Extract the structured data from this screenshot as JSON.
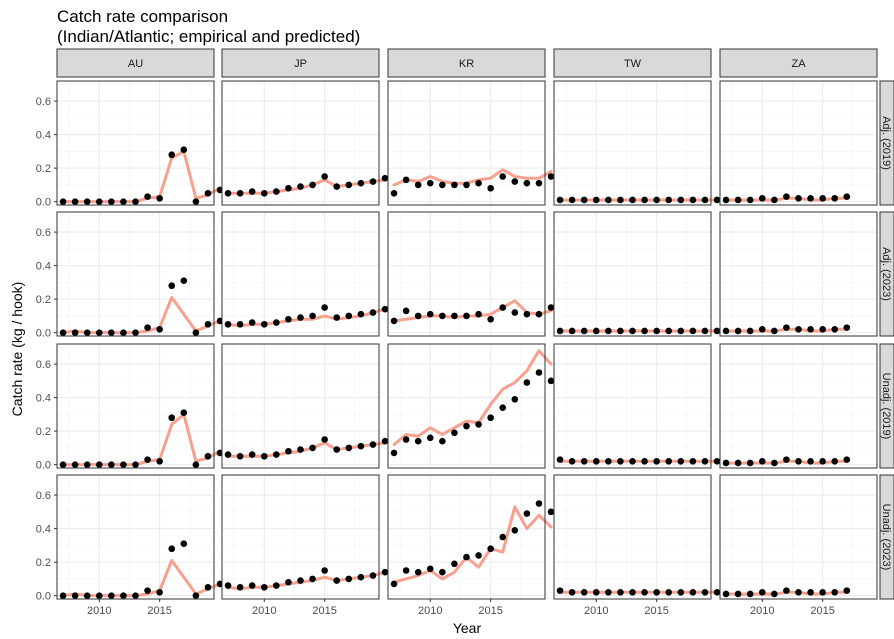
{
  "chart_data": {
    "type": "scatter",
    "title": "Catch rate comparison",
    "subtitle": "(Indian/Atlantic; empirical and predicted)",
    "xlabel": "Year",
    "ylabel": "Catch rate (kg / hook)",
    "xlim": [
      2006.5,
      2019.5
    ],
    "ylim": [
      -0.02,
      0.72
    ],
    "x_ticks": [
      2010,
      2015
    ],
    "y_ticks": [
      0.0,
      0.2,
      0.4,
      0.6
    ],
    "y_tick_labels": [
      "0.0",
      "0.2",
      "0.4",
      "0.6"
    ],
    "columns": [
      "AU",
      "JP",
      "KR",
      "TW",
      "ZA"
    ],
    "rows": [
      "Adj. (2019)",
      "Adj. (2023)",
      "Unadj. (2019)",
      "Unadj. (2023)"
    ],
    "grid": true,
    "colors": {
      "predicted_line": "#F8A08E",
      "empirical_point": "#000000",
      "strip_bg": "#D9D9D9"
    },
    "empirical": {
      "AU": {
        "x": [
          2007,
          2008,
          2009,
          2010,
          2011,
          2012,
          2013,
          2014,
          2015,
          2016,
          2017,
          2018,
          2019,
          2020
        ],
        "Adj. (2019)": [
          0.0,
          0.0,
          0.0,
          0.0,
          0.0,
          0.0,
          0.0,
          0.03,
          0.02,
          0.28,
          0.31,
          0.0,
          0.05,
          0.07
        ],
        "Adj. (2023)": [
          0.0,
          0.0,
          0.0,
          0.0,
          0.0,
          0.0,
          0.0,
          0.03,
          0.02,
          0.28,
          0.31,
          0.0,
          0.05,
          0.07
        ],
        "Unadj. (2019)": [
          0.0,
          0.0,
          0.0,
          0.0,
          0.0,
          0.0,
          0.0,
          0.03,
          0.02,
          0.28,
          0.31,
          0.0,
          0.05,
          0.07
        ],
        "Unadj. (2023)": [
          0.0,
          0.0,
          0.0,
          0.0,
          0.0,
          0.0,
          0.0,
          0.03,
          0.02,
          0.28,
          0.31,
          0.0,
          0.05,
          0.07
        ]
      },
      "JP": {
        "x": [
          2007,
          2008,
          2009,
          2010,
          2011,
          2012,
          2013,
          2014,
          2015,
          2016,
          2017,
          2018,
          2019,
          2020
        ],
        "Adj. (2019)": [
          0.05,
          0.05,
          0.06,
          0.05,
          0.06,
          0.08,
          0.09,
          0.1,
          0.15,
          0.09,
          0.1,
          0.11,
          0.12,
          0.14
        ],
        "Adj. (2023)": [
          0.05,
          0.05,
          0.06,
          0.05,
          0.06,
          0.08,
          0.09,
          0.1,
          0.15,
          0.09,
          0.1,
          0.11,
          0.12,
          0.14
        ],
        "Unadj. (2019)": [
          0.06,
          0.05,
          0.06,
          0.05,
          0.06,
          0.08,
          0.09,
          0.1,
          0.15,
          0.09,
          0.1,
          0.11,
          0.12,
          0.14
        ],
        "Unadj. (2023)": [
          0.06,
          0.05,
          0.06,
          0.05,
          0.06,
          0.08,
          0.09,
          0.1,
          0.15,
          0.09,
          0.1,
          0.11,
          0.12,
          0.14
        ]
      },
      "KR": {
        "x": [
          2007,
          2008,
          2009,
          2010,
          2011,
          2012,
          2013,
          2014,
          2015,
          2016,
          2017,
          2018,
          2019,
          2020
        ],
        "Adj. (2019)": [
          0.05,
          0.13,
          0.1,
          0.11,
          0.1,
          0.1,
          0.1,
          0.11,
          0.08,
          0.15,
          0.12,
          0.11,
          0.11,
          0.15
        ],
        "Adj. (2023)": [
          0.07,
          0.13,
          0.1,
          0.11,
          0.1,
          0.1,
          0.1,
          0.11,
          0.08,
          0.15,
          0.12,
          0.11,
          0.11,
          0.15
        ],
        "Unadj. (2019)": [
          0.07,
          0.15,
          0.14,
          0.16,
          0.14,
          0.19,
          0.23,
          0.24,
          0.28,
          0.34,
          0.39,
          0.49,
          0.55,
          0.5
        ],
        "Unadj. (2023)": [
          0.07,
          0.15,
          0.14,
          0.16,
          0.14,
          0.19,
          0.23,
          0.24,
          0.28,
          0.35,
          0.39,
          0.49,
          0.55,
          0.5
        ]
      },
      "TW": {
        "x": [
          2007,
          2008,
          2009,
          2010,
          2011,
          2012,
          2013,
          2014,
          2015,
          2016,
          2017,
          2018,
          2019,
          2020
        ],
        "Adj. (2019)": [
          0.01,
          0.01,
          0.01,
          0.01,
          0.01,
          0.01,
          0.01,
          0.01,
          0.01,
          0.01,
          0.01,
          0.01,
          0.01,
          0.01
        ],
        "Adj. (2023)": [
          0.01,
          0.01,
          0.01,
          0.01,
          0.01,
          0.01,
          0.01,
          0.01,
          0.01,
          0.01,
          0.01,
          0.01,
          0.01,
          0.01
        ],
        "Unadj. (2019)": [
          0.03,
          0.02,
          0.02,
          0.02,
          0.02,
          0.02,
          0.02,
          0.02,
          0.02,
          0.02,
          0.02,
          0.02,
          0.02,
          0.02
        ],
        "Unadj. (2023)": [
          0.03,
          0.02,
          0.02,
          0.02,
          0.02,
          0.02,
          0.02,
          0.02,
          0.02,
          0.02,
          0.02,
          0.02,
          0.02,
          0.02
        ]
      },
      "ZA": {
        "x": [
          2007,
          2008,
          2009,
          2010,
          2011,
          2012,
          2013,
          2014,
          2015,
          2016,
          2017
        ],
        "Adj. (2019)": [
          0.01,
          0.01,
          0.01,
          0.02,
          0.01,
          0.03,
          0.02,
          0.02,
          0.02,
          0.02,
          0.03
        ],
        "Adj. (2023)": [
          0.01,
          0.01,
          0.01,
          0.02,
          0.01,
          0.03,
          0.02,
          0.02,
          0.02,
          0.02,
          0.03
        ],
        "Unadj. (2019)": [
          0.01,
          0.01,
          0.01,
          0.02,
          0.01,
          0.03,
          0.02,
          0.02,
          0.02,
          0.02,
          0.03
        ],
        "Unadj. (2023)": [
          0.01,
          0.01,
          0.01,
          0.02,
          0.01,
          0.03,
          0.02,
          0.02,
          0.02,
          0.02,
          0.03
        ]
      }
    },
    "predicted": {
      "AU": {
        "x": [
          2007,
          2008,
          2009,
          2010,
          2011,
          2012,
          2013,
          2014,
          2015,
          2016,
          2017,
          2018,
          2019,
          2020
        ],
        "Adj. (2019)": [
          0.0,
          0.0,
          0.0,
          0.0,
          0.0,
          0.0,
          0.0,
          0.02,
          0.03,
          0.26,
          0.3,
          0.02,
          0.04,
          0.08
        ],
        "Adj. (2023)": [
          0.0,
          0.01,
          0.0,
          0.0,
          0.0,
          0.0,
          0.0,
          0.01,
          0.03,
          0.21,
          0.11,
          0.01,
          0.04,
          0.07
        ],
        "Unadj. (2019)": [
          0.0,
          0.0,
          0.0,
          0.0,
          0.0,
          0.0,
          0.0,
          0.02,
          0.03,
          0.24,
          0.3,
          0.02,
          0.04,
          0.08
        ],
        "Unadj. (2023)": [
          0.0,
          0.01,
          0.0,
          0.0,
          0.0,
          0.0,
          0.0,
          0.01,
          0.03,
          0.21,
          0.11,
          0.01,
          0.04,
          0.07
        ]
      },
      "JP": {
        "x": [
          2007,
          2008,
          2009,
          2010,
          2011,
          2012,
          2013,
          2014,
          2015,
          2016,
          2017,
          2018,
          2019,
          2020
        ],
        "Adj. (2019)": [
          0.05,
          0.05,
          0.05,
          0.05,
          0.06,
          0.07,
          0.08,
          0.1,
          0.13,
          0.09,
          0.1,
          0.11,
          0.12,
          0.13
        ],
        "Adj. (2023)": [
          0.05,
          0.04,
          0.05,
          0.05,
          0.06,
          0.07,
          0.08,
          0.08,
          0.1,
          0.08,
          0.09,
          0.1,
          0.12,
          0.14
        ],
        "Unadj. (2019)": [
          0.05,
          0.05,
          0.05,
          0.05,
          0.06,
          0.07,
          0.08,
          0.1,
          0.13,
          0.09,
          0.1,
          0.11,
          0.12,
          0.13
        ],
        "Unadj. (2023)": [
          0.05,
          0.04,
          0.05,
          0.05,
          0.06,
          0.07,
          0.08,
          0.09,
          0.11,
          0.09,
          0.1,
          0.11,
          0.12,
          0.14
        ]
      },
      "KR": {
        "x": [
          2007,
          2008,
          2009,
          2010,
          2011,
          2012,
          2013,
          2014,
          2015,
          2016,
          2017,
          2018,
          2019,
          2020
        ],
        "Adj. (2019)": [
          0.1,
          0.13,
          0.12,
          0.15,
          0.12,
          0.11,
          0.11,
          0.13,
          0.14,
          0.19,
          0.15,
          0.14,
          0.14,
          0.18
        ],
        "Adj. (2023)": [
          0.07,
          0.08,
          0.09,
          0.1,
          0.1,
          0.09,
          0.1,
          0.1,
          0.11,
          0.15,
          0.19,
          0.12,
          0.11,
          0.13
        ],
        "Unadj. (2019)": [
          0.12,
          0.18,
          0.17,
          0.22,
          0.18,
          0.22,
          0.26,
          0.25,
          0.36,
          0.45,
          0.49,
          0.56,
          0.68,
          0.6
        ],
        "Unadj. (2023)": [
          0.08,
          0.1,
          0.12,
          0.15,
          0.1,
          0.14,
          0.23,
          0.17,
          0.28,
          0.26,
          0.53,
          0.4,
          0.48,
          0.41
        ]
      },
      "TW": {
        "x": [
          2007,
          2008,
          2009,
          2010,
          2011,
          2012,
          2013,
          2014,
          2015,
          2016,
          2017,
          2018,
          2019,
          2020
        ],
        "Adj. (2019)": [
          0.01,
          0.01,
          0.01,
          0.01,
          0.01,
          0.01,
          0.01,
          0.01,
          0.01,
          0.01,
          0.01,
          0.01,
          0.01,
          0.01
        ],
        "Adj. (2023)": [
          0.01,
          0.01,
          0.01,
          0.01,
          0.01,
          0.01,
          0.01,
          0.01,
          0.01,
          0.01,
          0.01,
          0.01,
          0.01,
          0.01
        ],
        "Unadj. (2019)": [
          0.02,
          0.02,
          0.02,
          0.02,
          0.02,
          0.02,
          0.02,
          0.02,
          0.02,
          0.02,
          0.02,
          0.02,
          0.02,
          0.02
        ],
        "Unadj. (2023)": [
          0.02,
          0.02,
          0.02,
          0.02,
          0.02,
          0.02,
          0.02,
          0.02,
          0.02,
          0.02,
          0.02,
          0.02,
          0.02,
          0.02
        ]
      },
      "ZA": {
        "x": [
          2007,
          2008,
          2009,
          2010,
          2011,
          2012,
          2013,
          2014,
          2015,
          2016,
          2017
        ],
        "Adj. (2019)": [
          0.01,
          0.01,
          0.01,
          0.01,
          0.01,
          0.02,
          0.02,
          0.01,
          0.01,
          0.02,
          0.02
        ],
        "Adj. (2023)": [
          0.01,
          0.01,
          0.01,
          0.01,
          0.01,
          0.02,
          0.02,
          0.01,
          0.01,
          0.02,
          0.02
        ],
        "Unadj. (2019)": [
          0.01,
          0.01,
          0.01,
          0.01,
          0.01,
          0.02,
          0.02,
          0.01,
          0.01,
          0.02,
          0.02
        ],
        "Unadj. (2023)": [
          0.01,
          0.01,
          0.01,
          0.01,
          0.01,
          0.02,
          0.02,
          0.01,
          0.01,
          0.02,
          0.02
        ]
      }
    }
  }
}
